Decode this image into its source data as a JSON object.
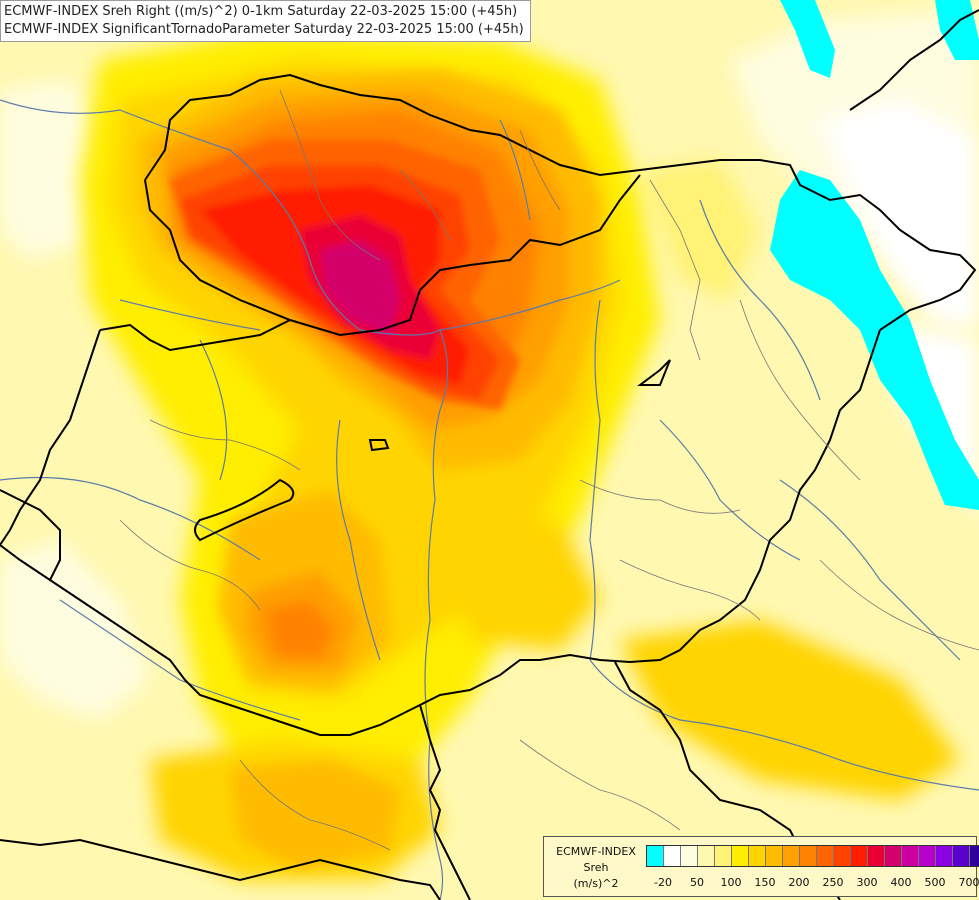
{
  "header": {
    "title_line_1": "ECMWF-INDEX Sreh Right ((m/s)^2) 0-1km Saturday 22-03-2025 15:00 (+45h)",
    "title_line_2": "ECMWF-INDEX SignificantTornadoParameter Saturday 22-03-2025 15:00 (+45h)"
  },
  "legend": {
    "line_1": "ECMWF-INDEX",
    "line_2": "Sreh",
    "line_3": "(m/s)^2",
    "colors": [
      "#00ffff",
      "#ffffff",
      "#fffde0",
      "#fff8b0",
      "#fff275",
      "#ffee00",
      "#ffd400",
      "#ffbb00",
      "#ff9f00",
      "#ff8200",
      "#ff6400",
      "#ff4200",
      "#ff1e00",
      "#ea0035",
      "#d4006b",
      "#cc00a0",
      "#b800cc",
      "#8a00e0",
      "#5c00d0",
      "#2e009c",
      "#0a0070"
    ],
    "ticks": [
      "-20",
      "50",
      "100",
      "150",
      "200",
      "250",
      "300",
      "400",
      "500",
      "700"
    ]
  },
  "map": {
    "water_color": "#00ffff",
    "border_color": "#000000",
    "river_color": "#5a7ca8"
  }
}
